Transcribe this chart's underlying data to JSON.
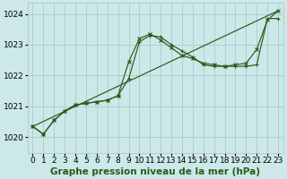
{
  "background_color": "#cce8e8",
  "grid_color": "#aacccc",
  "line_color": "#2d5a1b",
  "xlabel": "Graphe pression niveau de la mer (hPa)",
  "ylim": [
    1019.5,
    1024.35
  ],
  "xlim": [
    -0.5,
    23.5
  ],
  "yticks": [
    1020,
    1021,
    1022,
    1023,
    1024
  ],
  "xticks": [
    0,
    1,
    2,
    3,
    4,
    5,
    6,
    7,
    8,
    9,
    10,
    11,
    12,
    13,
    14,
    15,
    16,
    17,
    18,
    19,
    20,
    21,
    22,
    23
  ],
  "series_trend_x": [
    0,
    23
  ],
  "series_trend_y": [
    1020.35,
    1024.1
  ],
  "series_marked1_x": [
    0,
    1,
    2,
    3,
    4,
    5,
    6,
    7,
    8,
    9,
    10,
    11,
    12,
    13,
    14,
    15,
    16,
    17,
    18,
    19,
    20,
    21,
    22,
    23
  ],
  "series_marked1_y": [
    1020.35,
    1020.1,
    1020.55,
    1020.85,
    1021.05,
    1021.1,
    1021.15,
    1021.2,
    1021.35,
    1021.9,
    1023.1,
    1023.3,
    1023.25,
    1023.0,
    1022.8,
    1022.6,
    1022.35,
    1022.3,
    1022.3,
    1022.3,
    1022.3,
    1022.35,
    1023.85,
    1023.85
  ],
  "series_marked2_x": [
    0,
    1,
    2,
    3,
    4,
    5,
    6,
    7,
    8,
    9,
    10,
    11,
    12,
    13,
    14,
    15,
    16,
    17,
    18,
    19,
    20,
    21,
    22,
    23
  ],
  "series_marked2_y": [
    1020.35,
    1020.1,
    1020.55,
    1020.85,
    1021.05,
    1021.1,
    1021.15,
    1021.2,
    1021.35,
    1022.45,
    1023.2,
    1023.35,
    1023.15,
    1022.9,
    1022.65,
    1022.55,
    1022.4,
    1022.35,
    1022.3,
    1022.35,
    1022.4,
    1022.85,
    1023.8,
    1024.1
  ],
  "title_fontsize": 7.5,
  "tick_fontsize": 6.5
}
